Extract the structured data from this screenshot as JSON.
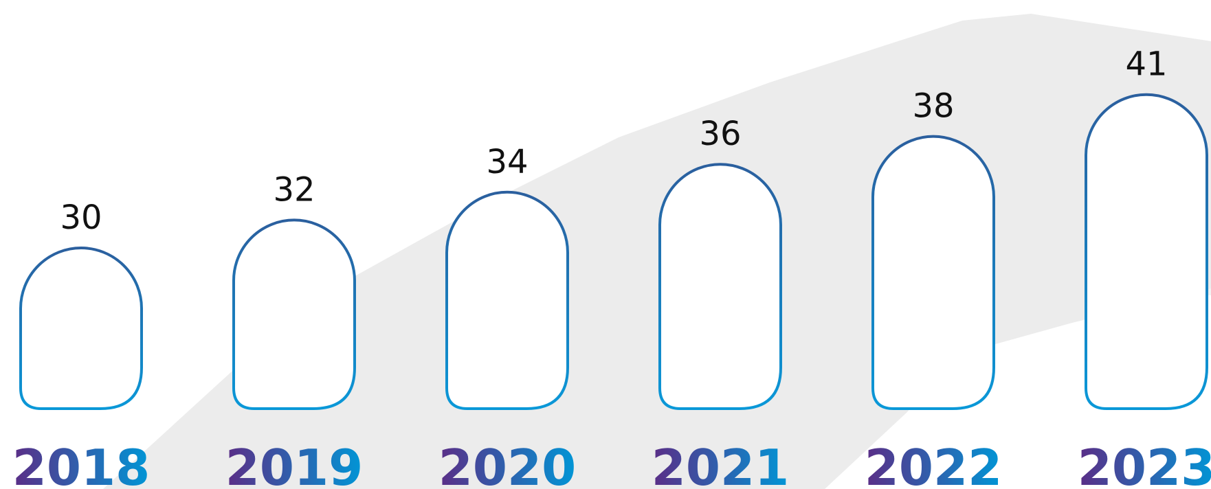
{
  "chart_data": {
    "type": "bar",
    "categories": [
      "2018",
      "2019",
      "2020",
      "2021",
      "2022",
      "2023"
    ],
    "values": [
      30,
      32,
      34,
      36,
      38,
      41
    ],
    "title": "",
    "xlabel": "",
    "ylabel": "",
    "grid": false,
    "legend": "none"
  },
  "colors": {
    "gradient_start": "#5b2d86",
    "gradient_end": "#0096d6",
    "bar_stroke_top": "#2b5f9e",
    "bar_stroke_bottom": "#0a98d8",
    "bar_fill": "#ffffff",
    "value_text": "#111111",
    "brush_background": "#ececec"
  }
}
